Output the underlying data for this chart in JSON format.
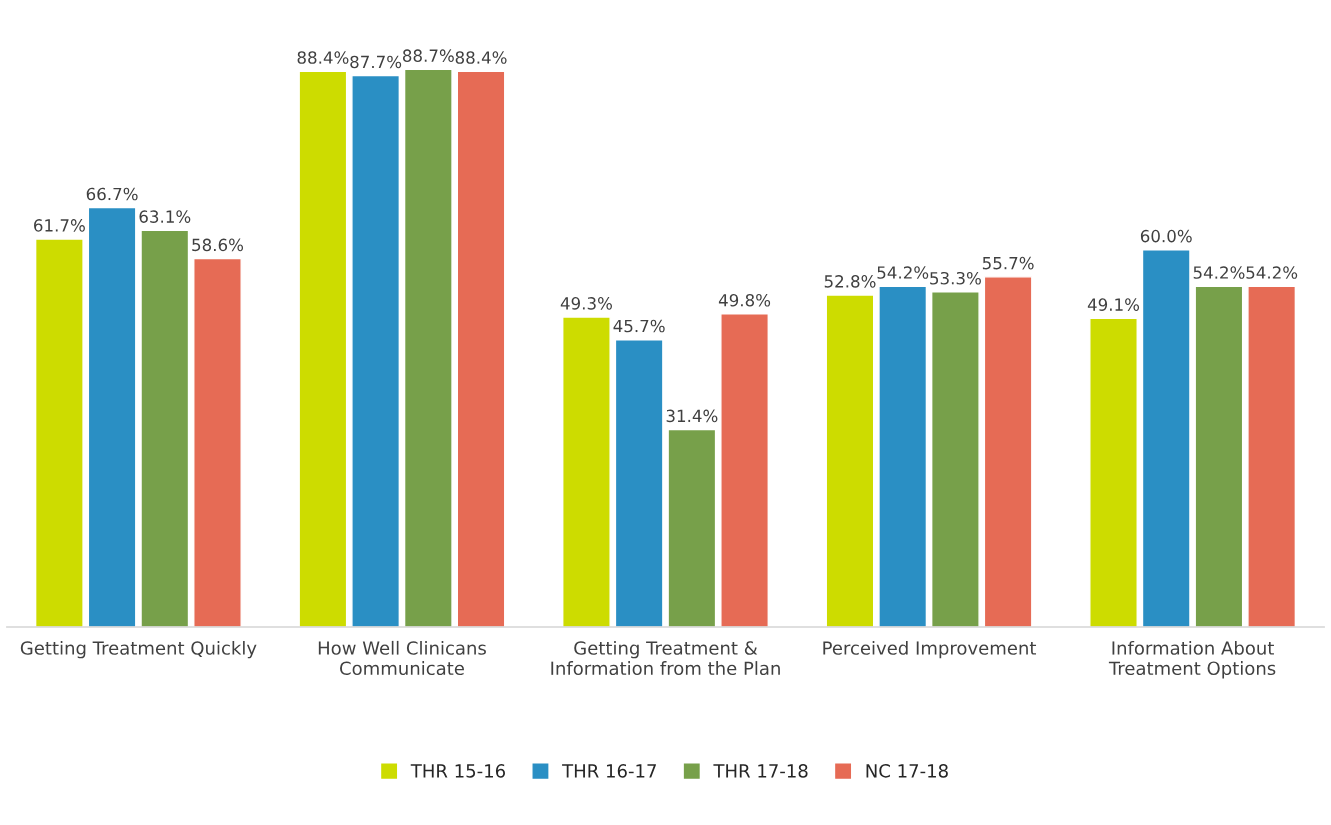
{
  "chart_data": {
    "type": "bar",
    "categories": [
      "Getting Treatment Quickly",
      "How Well Clinicans\nCommunicate",
      "Getting Treatment &\nInformation from the Plan",
      "Perceived Improvement",
      "Information About\nTreatment Options"
    ],
    "series": [
      {
        "name": "THR 15-16",
        "color": "#cddc00",
        "values": [
          61.7,
          88.4,
          49.3,
          52.8,
          49.1
        ],
        "value_labels": [
          "61.7%",
          "88.4%",
          "49.3%",
          "52.8%",
          "49.1%"
        ]
      },
      {
        "name": "THR 16-17",
        "color": "#2a8fc4",
        "values": [
          66.7,
          87.7,
          45.7,
          54.2,
          60.0
        ],
        "value_labels": [
          "66.7%",
          "87.7%",
          "45.7%",
          "54.2%",
          "60.0%"
        ]
      },
      {
        "name": "THR 17-18",
        "color": "#77a04a",
        "values": [
          63.1,
          88.7,
          31.4,
          53.3,
          54.2
        ],
        "value_labels": [
          "63.1%",
          "88.7%",
          "31.4%",
          "53.3%",
          "54.2%"
        ]
      },
      {
        "name": "NC 17-18",
        "color": "#e66b55",
        "values": [
          58.6,
          88.4,
          49.8,
          55.7,
          54.2
        ],
        "value_labels": [
          "58.6%",
          "88.4%",
          "49.8%",
          "55.7%",
          "54.2%"
        ]
      }
    ],
    "grid": false,
    "legend": "bottom"
  }
}
